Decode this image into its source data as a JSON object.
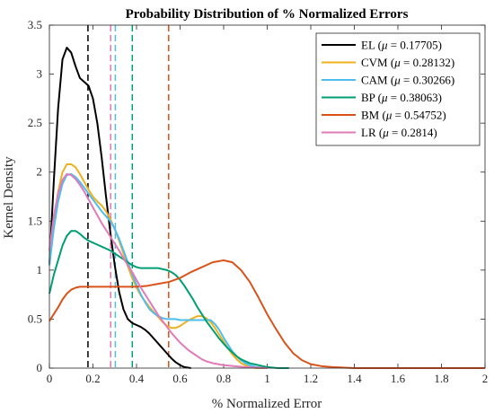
{
  "chart_data": {
    "type": "line",
    "title": "Probability Distribution of % Normalized Errors",
    "xlabel": "% Normalized Error",
    "ylabel": "Kernel Density",
    "xlim": [
      0,
      2
    ],
    "ylim": [
      0,
      3.5
    ],
    "xticks": [
      0,
      0.2,
      0.4,
      0.6,
      0.8,
      1,
      1.2,
      1.4,
      1.6,
      1.8,
      2
    ],
    "xtick_labels": [
      "0",
      "0.2",
      "0.4",
      "0.6",
      "0.8",
      "1",
      "1.2",
      "1.4",
      "1.6",
      "1.8",
      "2"
    ],
    "yticks": [
      0,
      0.5,
      1,
      1.5,
      2,
      2.5,
      3,
      3.5
    ],
    "ytick_labels": [
      "0",
      "0.5",
      "1",
      "1.5",
      "2",
      "2.5",
      "3",
      "3.5"
    ],
    "grid": false,
    "legend_position": "top-right",
    "series": [
      {
        "name": "EL",
        "mean": 0.17705,
        "color": "#000000",
        "points": [
          [
            0,
            1.05
          ],
          [
            0.02,
            1.9
          ],
          [
            0.04,
            2.65
          ],
          [
            0.06,
            3.15
          ],
          [
            0.08,
            3.27
          ],
          [
            0.1,
            3.22
          ],
          [
            0.12,
            3.08
          ],
          [
            0.14,
            2.96
          ],
          [
            0.16,
            2.92
          ],
          [
            0.18,
            2.88
          ],
          [
            0.2,
            2.75
          ],
          [
            0.22,
            2.5
          ],
          [
            0.24,
            2.15
          ],
          [
            0.26,
            1.75
          ],
          [
            0.28,
            1.38
          ],
          [
            0.3,
            1.05
          ],
          [
            0.32,
            0.78
          ],
          [
            0.34,
            0.6
          ],
          [
            0.36,
            0.5
          ],
          [
            0.38,
            0.46
          ],
          [
            0.4,
            0.44
          ],
          [
            0.42,
            0.42
          ],
          [
            0.44,
            0.39
          ],
          [
            0.46,
            0.35
          ],
          [
            0.48,
            0.3
          ],
          [
            0.5,
            0.25
          ],
          [
            0.52,
            0.2
          ],
          [
            0.54,
            0.15
          ],
          [
            0.56,
            0.1
          ],
          [
            0.58,
            0.06
          ],
          [
            0.6,
            0.03
          ],
          [
            0.62,
            0.01
          ],
          [
            0.65,
            0.0
          ]
        ]
      },
      {
        "name": "CVM",
        "mean": 0.28132,
        "color": "#EDB120",
        "points": [
          [
            0,
            1.05
          ],
          [
            0.02,
            1.5
          ],
          [
            0.04,
            1.8
          ],
          [
            0.06,
            2.0
          ],
          [
            0.08,
            2.08
          ],
          [
            0.1,
            2.08
          ],
          [
            0.12,
            2.05
          ],
          [
            0.14,
            1.98
          ],
          [
            0.16,
            1.9
          ],
          [
            0.18,
            1.82
          ],
          [
            0.2,
            1.75
          ],
          [
            0.22,
            1.7
          ],
          [
            0.24,
            1.66
          ],
          [
            0.26,
            1.6
          ],
          [
            0.28,
            1.52
          ],
          [
            0.3,
            1.42
          ],
          [
            0.32,
            1.3
          ],
          [
            0.34,
            1.17
          ],
          [
            0.36,
            1.04
          ],
          [
            0.38,
            0.92
          ],
          [
            0.4,
            0.82
          ],
          [
            0.42,
            0.74
          ],
          [
            0.44,
            0.68
          ],
          [
            0.46,
            0.62
          ],
          [
            0.48,
            0.57
          ],
          [
            0.5,
            0.52
          ],
          [
            0.52,
            0.47
          ],
          [
            0.54,
            0.43
          ],
          [
            0.56,
            0.41
          ],
          [
            0.58,
            0.41
          ],
          [
            0.6,
            0.43
          ],
          [
            0.62,
            0.46
          ],
          [
            0.64,
            0.49
          ],
          [
            0.66,
            0.51
          ],
          [
            0.68,
            0.53
          ],
          [
            0.7,
            0.53
          ],
          [
            0.72,
            0.51
          ],
          [
            0.74,
            0.47
          ],
          [
            0.76,
            0.41
          ],
          [
            0.78,
            0.34
          ],
          [
            0.8,
            0.27
          ],
          [
            0.82,
            0.2
          ],
          [
            0.84,
            0.14
          ],
          [
            0.86,
            0.09
          ],
          [
            0.88,
            0.05
          ],
          [
            0.9,
            0.03
          ],
          [
            0.92,
            0.01
          ],
          [
            0.95,
            0.0
          ],
          [
            1.0,
            0.0
          ]
        ]
      },
      {
        "name": "CAM",
        "mean": 0.30266,
        "color": "#4DBEEE",
        "points": [
          [
            0,
            1.05
          ],
          [
            0.02,
            1.42
          ],
          [
            0.04,
            1.7
          ],
          [
            0.06,
            1.88
          ],
          [
            0.08,
            1.97
          ],
          [
            0.1,
            1.98
          ],
          [
            0.12,
            1.95
          ],
          [
            0.14,
            1.9
          ],
          [
            0.16,
            1.84
          ],
          [
            0.18,
            1.78
          ],
          [
            0.2,
            1.72
          ],
          [
            0.22,
            1.66
          ],
          [
            0.24,
            1.6
          ],
          [
            0.26,
            1.55
          ],
          [
            0.28,
            1.5
          ],
          [
            0.3,
            1.42
          ],
          [
            0.32,
            1.32
          ],
          [
            0.34,
            1.2
          ],
          [
            0.36,
            1.08
          ],
          [
            0.38,
            0.96
          ],
          [
            0.4,
            0.85
          ],
          [
            0.42,
            0.75
          ],
          [
            0.44,
            0.67
          ],
          [
            0.46,
            0.6
          ],
          [
            0.48,
            0.56
          ],
          [
            0.5,
            0.53
          ],
          [
            0.52,
            0.51
          ],
          [
            0.54,
            0.5
          ],
          [
            0.56,
            0.5
          ],
          [
            0.58,
            0.5
          ],
          [
            0.6,
            0.49
          ],
          [
            0.62,
            0.49
          ],
          [
            0.64,
            0.49
          ],
          [
            0.66,
            0.49
          ],
          [
            0.68,
            0.49
          ],
          [
            0.7,
            0.49
          ],
          [
            0.72,
            0.49
          ],
          [
            0.74,
            0.49
          ],
          [
            0.76,
            0.45
          ],
          [
            0.78,
            0.39
          ],
          [
            0.8,
            0.31
          ],
          [
            0.82,
            0.24
          ],
          [
            0.84,
            0.17
          ],
          [
            0.86,
            0.12
          ],
          [
            0.88,
            0.08
          ],
          [
            0.9,
            0.05
          ],
          [
            0.92,
            0.03
          ],
          [
            0.95,
            0.01
          ],
          [
            1.0,
            0.0
          ]
        ]
      },
      {
        "name": "BP",
        "mean": 0.38063,
        "color": "#009E73",
        "points": [
          [
            0,
            0.76
          ],
          [
            0.02,
            0.95
          ],
          [
            0.04,
            1.1
          ],
          [
            0.06,
            1.25
          ],
          [
            0.08,
            1.35
          ],
          [
            0.1,
            1.4
          ],
          [
            0.12,
            1.4
          ],
          [
            0.14,
            1.37
          ],
          [
            0.16,
            1.33
          ],
          [
            0.18,
            1.3
          ],
          [
            0.2,
            1.28
          ],
          [
            0.22,
            1.26
          ],
          [
            0.24,
            1.24
          ],
          [
            0.26,
            1.22
          ],
          [
            0.28,
            1.2
          ],
          [
            0.3,
            1.17
          ],
          [
            0.32,
            1.14
          ],
          [
            0.34,
            1.11
          ],
          [
            0.36,
            1.08
          ],
          [
            0.38,
            1.05
          ],
          [
            0.4,
            1.03
          ],
          [
            0.42,
            1.02
          ],
          [
            0.44,
            1.02
          ],
          [
            0.46,
            1.02
          ],
          [
            0.48,
            1.02
          ],
          [
            0.5,
            1.02
          ],
          [
            0.52,
            1.01
          ],
          [
            0.54,
            1.0
          ],
          [
            0.56,
            0.98
          ],
          [
            0.58,
            0.95
          ],
          [
            0.6,
            0.9
          ],
          [
            0.62,
            0.84
          ],
          [
            0.64,
            0.77
          ],
          [
            0.66,
            0.7
          ],
          [
            0.68,
            0.62
          ],
          [
            0.7,
            0.55
          ],
          [
            0.72,
            0.48
          ],
          [
            0.74,
            0.42
          ],
          [
            0.76,
            0.36
          ],
          [
            0.78,
            0.3
          ],
          [
            0.8,
            0.25
          ],
          [
            0.82,
            0.2
          ],
          [
            0.84,
            0.16
          ],
          [
            0.86,
            0.12
          ],
          [
            0.88,
            0.09
          ],
          [
            0.9,
            0.07
          ],
          [
            0.92,
            0.05
          ],
          [
            0.94,
            0.04
          ],
          [
            0.96,
            0.03
          ],
          [
            0.98,
            0.02
          ],
          [
            1.0,
            0.01
          ],
          [
            1.05,
            0.0
          ],
          [
            1.1,
            0.0
          ]
        ]
      },
      {
        "name": "BM",
        "mean": 0.54752,
        "color": "#D95319",
        "points": [
          [
            0,
            0.48
          ],
          [
            0.02,
            0.55
          ],
          [
            0.04,
            0.62
          ],
          [
            0.06,
            0.7
          ],
          [
            0.08,
            0.76
          ],
          [
            0.1,
            0.8
          ],
          [
            0.12,
            0.82
          ],
          [
            0.14,
            0.83
          ],
          [
            0.16,
            0.83
          ],
          [
            0.2,
            0.83
          ],
          [
            0.25,
            0.83
          ],
          [
            0.3,
            0.83
          ],
          [
            0.35,
            0.83
          ],
          [
            0.4,
            0.83
          ],
          [
            0.45,
            0.84
          ],
          [
            0.5,
            0.86
          ],
          [
            0.55,
            0.88
          ],
          [
            0.6,
            0.92
          ],
          [
            0.65,
            0.98
          ],
          [
            0.7,
            1.03
          ],
          [
            0.75,
            1.08
          ],
          [
            0.8,
            1.1
          ],
          [
            0.84,
            1.08
          ],
          [
            0.88,
            1.0
          ],
          [
            0.92,
            0.88
          ],
          [
            0.96,
            0.72
          ],
          [
            1.0,
            0.55
          ],
          [
            1.04,
            0.4
          ],
          [
            1.08,
            0.26
          ],
          [
            1.12,
            0.15
          ],
          [
            1.16,
            0.08
          ],
          [
            1.2,
            0.04
          ],
          [
            1.25,
            0.02
          ],
          [
            1.3,
            0.01
          ],
          [
            1.4,
            0.0
          ],
          [
            1.6,
            0.0
          ],
          [
            2.0,
            0.0
          ]
        ]
      },
      {
        "name": "LR",
        "mean": 0.2814,
        "color": "#E07BB8",
        "points": [
          [
            0,
            1.2
          ],
          [
            0.02,
            1.55
          ],
          [
            0.04,
            1.78
          ],
          [
            0.06,
            1.92
          ],
          [
            0.08,
            1.98
          ],
          [
            0.1,
            1.97
          ],
          [
            0.12,
            1.93
          ],
          [
            0.14,
            1.87
          ],
          [
            0.16,
            1.8
          ],
          [
            0.18,
            1.72
          ],
          [
            0.2,
            1.64
          ],
          [
            0.22,
            1.56
          ],
          [
            0.24,
            1.48
          ],
          [
            0.26,
            1.41
          ],
          [
            0.28,
            1.34
          ],
          [
            0.3,
            1.27
          ],
          [
            0.32,
            1.2
          ],
          [
            0.34,
            1.12
          ],
          [
            0.36,
            1.05
          ],
          [
            0.38,
            0.98
          ],
          [
            0.4,
            0.9
          ],
          [
            0.42,
            0.82
          ],
          [
            0.44,
            0.75
          ],
          [
            0.46,
            0.68
          ],
          [
            0.48,
            0.61
          ],
          [
            0.5,
            0.54
          ],
          [
            0.52,
            0.48
          ],
          [
            0.54,
            0.42
          ],
          [
            0.56,
            0.36
          ],
          [
            0.58,
            0.31
          ],
          [
            0.6,
            0.26
          ],
          [
            0.62,
            0.22
          ],
          [
            0.64,
            0.18
          ],
          [
            0.66,
            0.15
          ],
          [
            0.68,
            0.12
          ],
          [
            0.7,
            0.09
          ],
          [
            0.72,
            0.07
          ],
          [
            0.75,
            0.05
          ],
          [
            0.8,
            0.03
          ],
          [
            0.85,
            0.02
          ],
          [
            0.9,
            0.01
          ],
          [
            1.0,
            0.0
          ]
        ]
      }
    ]
  }
}
